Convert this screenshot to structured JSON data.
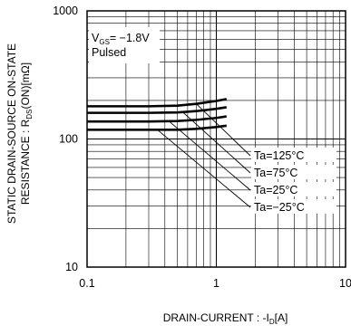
{
  "chart_data": {
    "type": "line",
    "xscale": "log",
    "yscale": "log",
    "xlim": [
      0.1,
      10
    ],
    "ylim": [
      10,
      1000
    ],
    "x_ticks": [
      {
        "value": 0.1,
        "label": "0.1"
      },
      {
        "value": 1,
        "label": "1"
      },
      {
        "value": 10,
        "label": "10"
      }
    ],
    "y_ticks": [
      {
        "value": 10,
        "label": "10"
      },
      {
        "value": 100,
        "label": "100"
      },
      {
        "value": 1000,
        "label": "1000"
      }
    ],
    "xlabel": {
      "main": "DRAIN-CURRENT : -I",
      "sub": "D",
      "tail": "[A]"
    },
    "ylabel": {
      "line1": "STATIC DRAIN-SOURCE ON-STATE",
      "line2_main": "RESISTANCE : R",
      "line2_sub": "DS",
      "line2_tail": "(ON)[mΩ]"
    },
    "annotation": {
      "main": "V",
      "sub": "GS",
      "value": "= −1.8V",
      "line2": "Pulsed"
    },
    "grid": true,
    "legend": "none",
    "series": [
      {
        "name": "Ta=125°C",
        "x": [
          0.1,
          0.2,
          0.3,
          0.5,
          0.7,
          1.0,
          1.2
        ],
        "y": [
          180,
          180,
          180,
          182,
          188,
          198,
          205
        ]
      },
      {
        "name": "Ta=75°C",
        "x": [
          0.1,
          0.2,
          0.3,
          0.5,
          0.7,
          1.0,
          1.2
        ],
        "y": [
          160,
          160,
          160,
          161,
          165,
          172,
          177
        ]
      },
      {
        "name": "Ta=25°C",
        "x": [
          0.1,
          0.2,
          0.3,
          0.5,
          0.7,
          1.0,
          1.2
        ],
        "y": [
          137,
          137,
          137,
          138,
          141,
          146,
          150
        ]
      },
      {
        "name": "Ta=−25°C",
        "x": [
          0.1,
          0.2,
          0.3,
          0.5,
          0.7,
          1.0,
          1.2
        ],
        "y": [
          118,
          118,
          118,
          118,
          120,
          124,
          127
        ]
      }
    ],
    "colors": {
      "line": "#000000",
      "grid": "#000000",
      "background": "#ffffff"
    }
  }
}
